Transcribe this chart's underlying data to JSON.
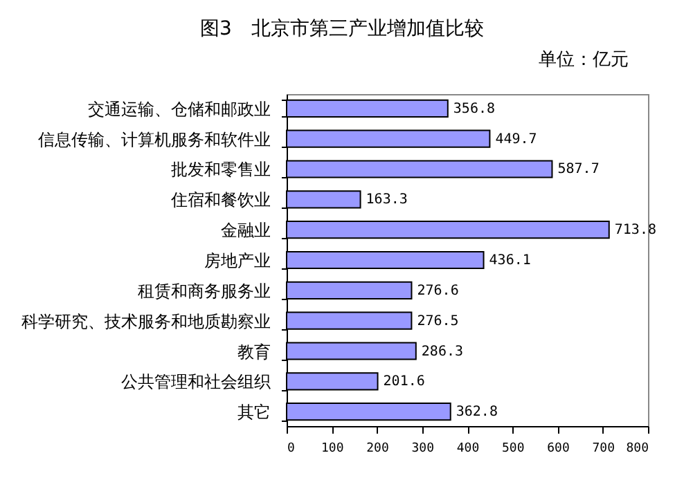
{
  "chart_data": {
    "type": "bar",
    "orientation": "horizontal",
    "title": "图3　北京市第三产业增加值比较",
    "annotations": [
      "单位：亿元"
    ],
    "categories": [
      "交通运输、仓储和邮政业",
      "信息传输、计算机服务和软件业",
      "批发和零售业",
      "住宿和餐饮业",
      "金融业",
      "房地产业",
      "租赁和商务服务业",
      "科学研究、技术服务和地质勘察业",
      "教育",
      "公共管理和社会组织",
      "其它"
    ],
    "values": [
      356.8,
      449.7,
      587.7,
      163.3,
      713.8,
      436.1,
      276.6,
      276.5,
      286.3,
      201.6,
      362.8
    ],
    "color": "#9999ff",
    "xlim": [
      0,
      800
    ],
    "xticks": [
      0,
      100,
      200,
      300,
      400,
      500,
      600,
      700,
      800
    ],
    "data_labels": true
  }
}
